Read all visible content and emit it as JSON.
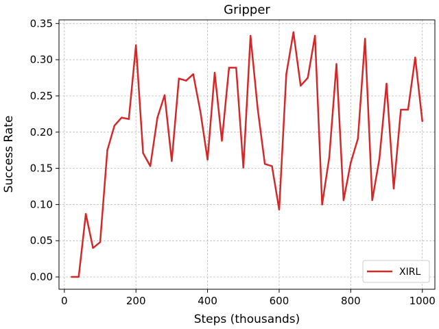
{
  "chart_data": {
    "type": "line",
    "title": "Gripper",
    "xlabel": "Steps (thousands)",
    "ylabel": "Success Rate",
    "xlim": [
      -15,
      1035
    ],
    "ylim": [
      -0.017,
      0.355
    ],
    "xticks": [
      0,
      200,
      400,
      600,
      800,
      1000
    ],
    "yticks": [
      0.0,
      0.05,
      0.1,
      0.15,
      0.2,
      0.25,
      0.3,
      0.35
    ],
    "ytick_labels": [
      "0.00",
      "0.05",
      "0.10",
      "0.15",
      "0.20",
      "0.25",
      "0.30",
      "0.35"
    ],
    "grid": true,
    "legend_position": "lower-right",
    "series": [
      {
        "name": "XIRL",
        "color": "#d62728",
        "x": [
          20,
          40,
          60,
          80,
          100,
          120,
          140,
          160,
          180,
          200,
          220,
          240,
          260,
          280,
          300,
          320,
          340,
          360,
          380,
          400,
          420,
          440,
          460,
          480,
          500,
          520,
          540,
          560,
          580,
          600,
          620,
          640,
          660,
          680,
          700,
          720,
          740,
          760,
          780,
          800,
          820,
          840,
          860,
          880,
          900,
          920,
          940,
          960,
          980,
          1000
        ],
        "y": [
          0.0,
          0.0,
          0.087,
          0.04,
          0.048,
          0.175,
          0.209,
          0.22,
          0.218,
          0.32,
          0.171,
          0.153,
          0.22,
          0.251,
          0.16,
          0.274,
          0.271,
          0.28,
          0.228,
          0.162,
          0.282,
          0.188,
          0.289,
          0.289,
          0.151,
          0.333,
          0.232,
          0.156,
          0.153,
          0.093,
          0.28,
          0.338,
          0.264,
          0.275,
          0.333,
          0.1,
          0.165,
          0.294,
          0.106,
          0.158,
          0.191,
          0.329,
          0.106,
          0.163,
          0.267,
          0.122,
          0.231,
          0.231,
          0.303,
          0.215
        ]
      }
    ]
  }
}
